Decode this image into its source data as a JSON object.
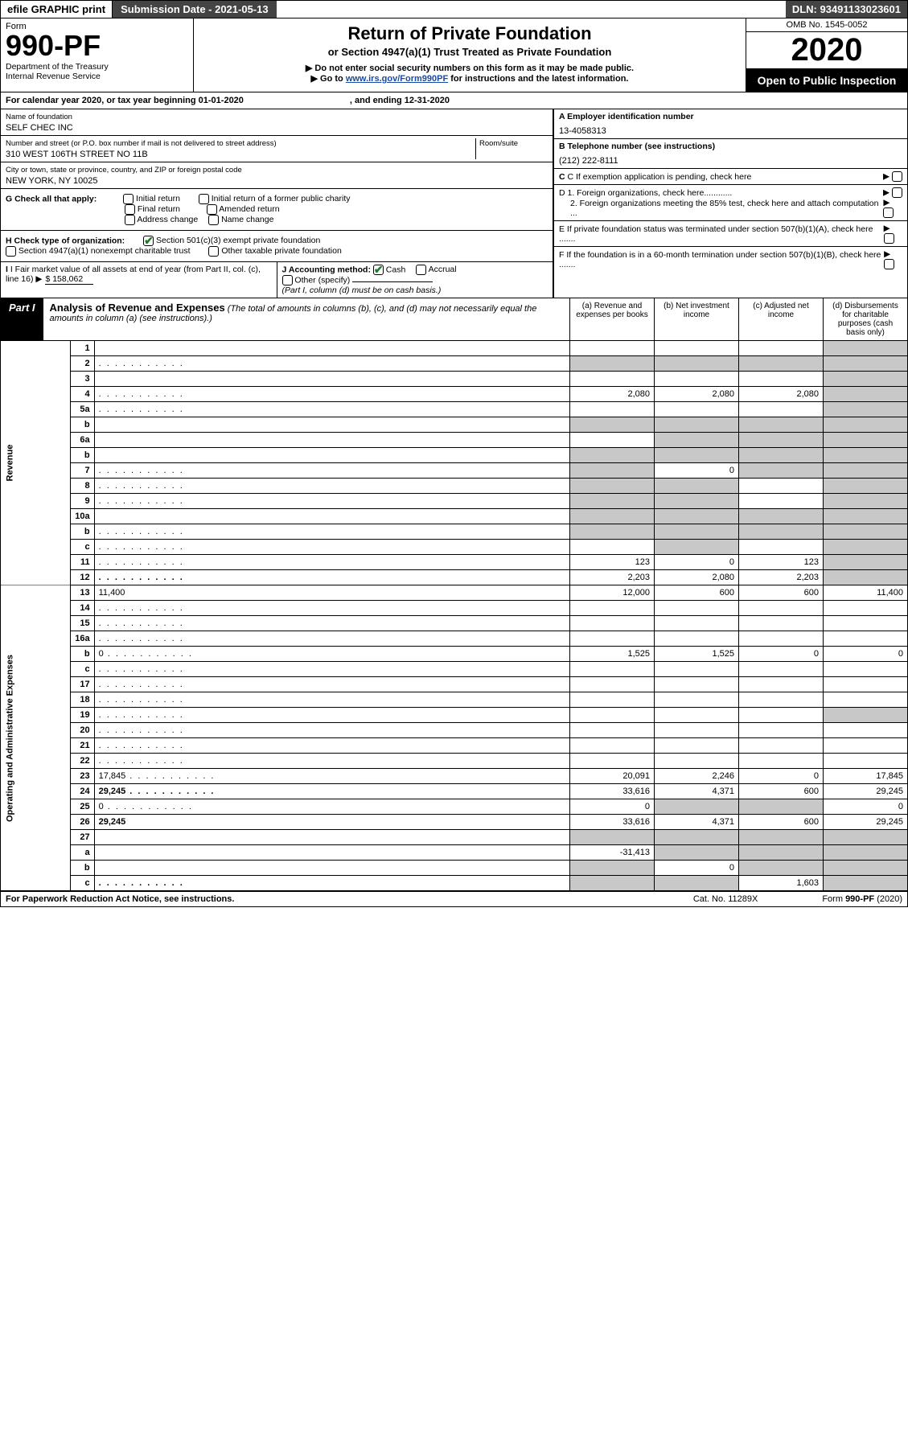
{
  "topbar": {
    "left": "efile GRAPHIC print",
    "mid": "Submission Date - 2021-05-13",
    "right": "DLN: 93491133023601"
  },
  "header": {
    "form_label": "Form",
    "form_no": "990-PF",
    "dept1": "Department of the Treasury",
    "dept2": "Internal Revenue Service",
    "title": "Return of Private Foundation",
    "subtitle": "or Section 4947(a)(1) Trust Treated as Private Foundation",
    "note1": "▶ Do not enter social security numbers on this form as it may be made public.",
    "note2_pre": "▶ Go to ",
    "note2_link": "www.irs.gov/Form990PF",
    "note2_post": " for instructions and the latest information.",
    "omb": "OMB No. 1545-0052",
    "year": "2020",
    "open": "Open to Public Inspection"
  },
  "cal": {
    "label": "For calendar year 2020, or tax year beginning 01-01-2020",
    "ending_label": ", and ending 12-31-2020"
  },
  "id": {
    "name_label": "Name of foundation",
    "name": "SELF CHEC INC",
    "addr_label": "Number and street (or P.O. box number if mail is not delivered to street address)",
    "addr": "310 WEST 106TH STREET NO 11B",
    "room_label": "Room/suite",
    "city_label": "City or town, state or province, country, and ZIP or foreign postal code",
    "city": "NEW YORK, NY  10025",
    "ein_label": "A Employer identification number",
    "ein": "13-4058313",
    "tel_label": "B Telephone number (see instructions)",
    "tel": "(212) 222-8111",
    "c_label": "C If exemption application is pending, check here",
    "d1_label": "D 1. Foreign organizations, check here............",
    "d2_label": "2. Foreign organizations meeting the 85% test, check here and attach computation ...",
    "e_label": "E  If private foundation status was terminated under section 507(b)(1)(A), check here .......",
    "f_label": "F  If the foundation is in a 60-month termination under section 507(b)(1)(B), check here .......",
    "g_label": "G Check all that apply:",
    "g_opts": [
      "Initial return",
      "Initial return of a former public charity",
      "Final return",
      "Amended return",
      "Address change",
      "Name change"
    ],
    "h_label": "H Check type of organization:",
    "h_opt1": "Section 501(c)(3) exempt private foundation",
    "h_opt2": "Section 4947(a)(1) nonexempt charitable trust",
    "h_opt3": "Other taxable private foundation",
    "i_label": "I Fair market value of all assets at end of year (from Part II, col. (c), line 16)",
    "i_val": "$  158,062",
    "j_label": "J Accounting method:",
    "j_cash": "Cash",
    "j_accrual": "Accrual",
    "j_other": "Other (specify)",
    "j_note": "(Part I, column (d) must be on cash basis.)"
  },
  "part1": {
    "tag": "Part I",
    "title": "Analysis of Revenue and Expenses",
    "note": "(The total of amounts in columns (b), (c), and (d) may not necessarily equal the amounts in column (a) (see instructions).)",
    "col_a": "(a)   Revenue and expenses per books",
    "col_b": "(b)   Net investment income",
    "col_c": "(c)   Adjusted net income",
    "col_d": "(d)   Disbursements for charitable purposes (cash basis only)"
  },
  "sides": {
    "rev": "Revenue",
    "exp": "Operating and Administrative Expenses"
  },
  "rows": [
    {
      "n": "1",
      "d": "",
      "a": "",
      "b": "",
      "c": "",
      "sh": [
        "d"
      ]
    },
    {
      "n": "2",
      "d": "",
      "dots": true,
      "a": "",
      "b": "",
      "c": "",
      "sh": [
        "a",
        "b",
        "c",
        "d"
      ],
      "ashade": true
    },
    {
      "n": "3",
      "d": "",
      "a": "",
      "b": "",
      "c": "",
      "sh": [
        "d"
      ]
    },
    {
      "n": "4",
      "d": "",
      "dots": true,
      "a": "2,080",
      "b": "2,080",
      "c": "2,080",
      "sh": [
        "d"
      ]
    },
    {
      "n": "5a",
      "d": "",
      "dots": true,
      "a": "",
      "b": "",
      "c": "",
      "sh": [
        "d"
      ]
    },
    {
      "n": "b",
      "d": "",
      "a": "",
      "b": "",
      "c": "",
      "sh": [
        "a",
        "b",
        "c",
        "d"
      ]
    },
    {
      "n": "6a",
      "d": "",
      "a": "",
      "b": "",
      "c": "",
      "sh": [
        "b",
        "c",
        "d"
      ]
    },
    {
      "n": "b",
      "d": "",
      "a": "",
      "b": "",
      "c": "",
      "sh": [
        "a",
        "b",
        "c",
        "d"
      ]
    },
    {
      "n": "7",
      "d": "",
      "dots": true,
      "a": "",
      "b": "0",
      "c": "",
      "sh": [
        "a",
        "c",
        "d"
      ]
    },
    {
      "n": "8",
      "d": "",
      "dots": true,
      "a": "",
      "b": "",
      "c": "",
      "sh": [
        "a",
        "b",
        "d"
      ]
    },
    {
      "n": "9",
      "d": "",
      "dots": true,
      "a": "",
      "b": "",
      "c": "",
      "sh": [
        "a",
        "b",
        "d"
      ]
    },
    {
      "n": "10a",
      "d": "",
      "a": "",
      "b": "",
      "c": "",
      "sh": [
        "a",
        "b",
        "c",
        "d"
      ]
    },
    {
      "n": "b",
      "d": "",
      "dots": true,
      "a": "",
      "b": "",
      "c": "",
      "sh": [
        "a",
        "b",
        "c",
        "d"
      ]
    },
    {
      "n": "c",
      "d": "",
      "dots": true,
      "a": "",
      "b": "",
      "c": "",
      "sh": [
        "b",
        "d"
      ]
    },
    {
      "n": "11",
      "d": "",
      "dots": true,
      "a": "123",
      "b": "0",
      "c": "123",
      "sh": [
        "d"
      ]
    },
    {
      "n": "12",
      "d": "",
      "dots": true,
      "a": "2,203",
      "b": "2,080",
      "c": "2,203",
      "sh": [
        "d"
      ],
      "bold": true
    },
    {
      "n": "13",
      "d": "11,400",
      "a": "12,000",
      "b": "600",
      "c": "600"
    },
    {
      "n": "14",
      "d": "",
      "dots": true,
      "a": "",
      "b": "",
      "c": ""
    },
    {
      "n": "15",
      "d": "",
      "dots": true,
      "a": "",
      "b": "",
      "c": ""
    },
    {
      "n": "16a",
      "d": "",
      "dots": true,
      "a": "",
      "b": "",
      "c": ""
    },
    {
      "n": "b",
      "d": "0",
      "dots": true,
      "a": "1,525",
      "b": "1,525",
      "c": "0"
    },
    {
      "n": "c",
      "d": "",
      "dots": true,
      "a": "",
      "b": "",
      "c": ""
    },
    {
      "n": "17",
      "d": "",
      "dots": true,
      "a": "",
      "b": "",
      "c": ""
    },
    {
      "n": "18",
      "d": "",
      "dots": true,
      "a": "",
      "b": "",
      "c": ""
    },
    {
      "n": "19",
      "d": "",
      "dots": true,
      "a": "",
      "b": "",
      "c": "",
      "sh": [
        "d"
      ]
    },
    {
      "n": "20",
      "d": "",
      "dots": true,
      "a": "",
      "b": "",
      "c": ""
    },
    {
      "n": "21",
      "d": "",
      "dots": true,
      "a": "",
      "b": "",
      "c": ""
    },
    {
      "n": "22",
      "d": "",
      "dots": true,
      "a": "",
      "b": "",
      "c": ""
    },
    {
      "n": "23",
      "d": "17,845",
      "dots": true,
      "a": "20,091",
      "b": "2,246",
      "c": "0"
    },
    {
      "n": "24",
      "d": "29,245",
      "dots": true,
      "a": "33,616",
      "b": "4,371",
      "c": "600",
      "bold": true
    },
    {
      "n": "25",
      "d": "0",
      "dots": true,
      "a": "0",
      "b": "",
      "c": "",
      "sh": [
        "b",
        "c"
      ]
    },
    {
      "n": "26",
      "d": "29,245",
      "a": "33,616",
      "b": "4,371",
      "c": "600",
      "bold": true
    },
    {
      "n": "27",
      "d": "",
      "a": "",
      "b": "",
      "c": "",
      "sh": [
        "a",
        "b",
        "c",
        "d"
      ]
    },
    {
      "n": "a",
      "d": "",
      "a": "-31,413",
      "b": "",
      "c": "",
      "sh": [
        "b",
        "c",
        "d"
      ],
      "bold": true
    },
    {
      "n": "b",
      "d": "",
      "a": "",
      "b": "0",
      "c": "",
      "sh": [
        "a",
        "c",
        "d"
      ],
      "bold": true
    },
    {
      "n": "c",
      "d": "",
      "dots": true,
      "a": "",
      "b": "",
      "c": "1,603",
      "sh": [
        "a",
        "b",
        "d"
      ],
      "bold": true
    }
  ],
  "footer": {
    "left": "For Paperwork Reduction Act Notice, see instructions.",
    "mid": "Cat. No. 11289X",
    "right": "Form 990-PF (2020)"
  },
  "colors": {
    "shade": "#c8c8c8",
    "link": "#1a4aa3",
    "check": "#1a7a2a",
    "darkbar": "#444444"
  }
}
